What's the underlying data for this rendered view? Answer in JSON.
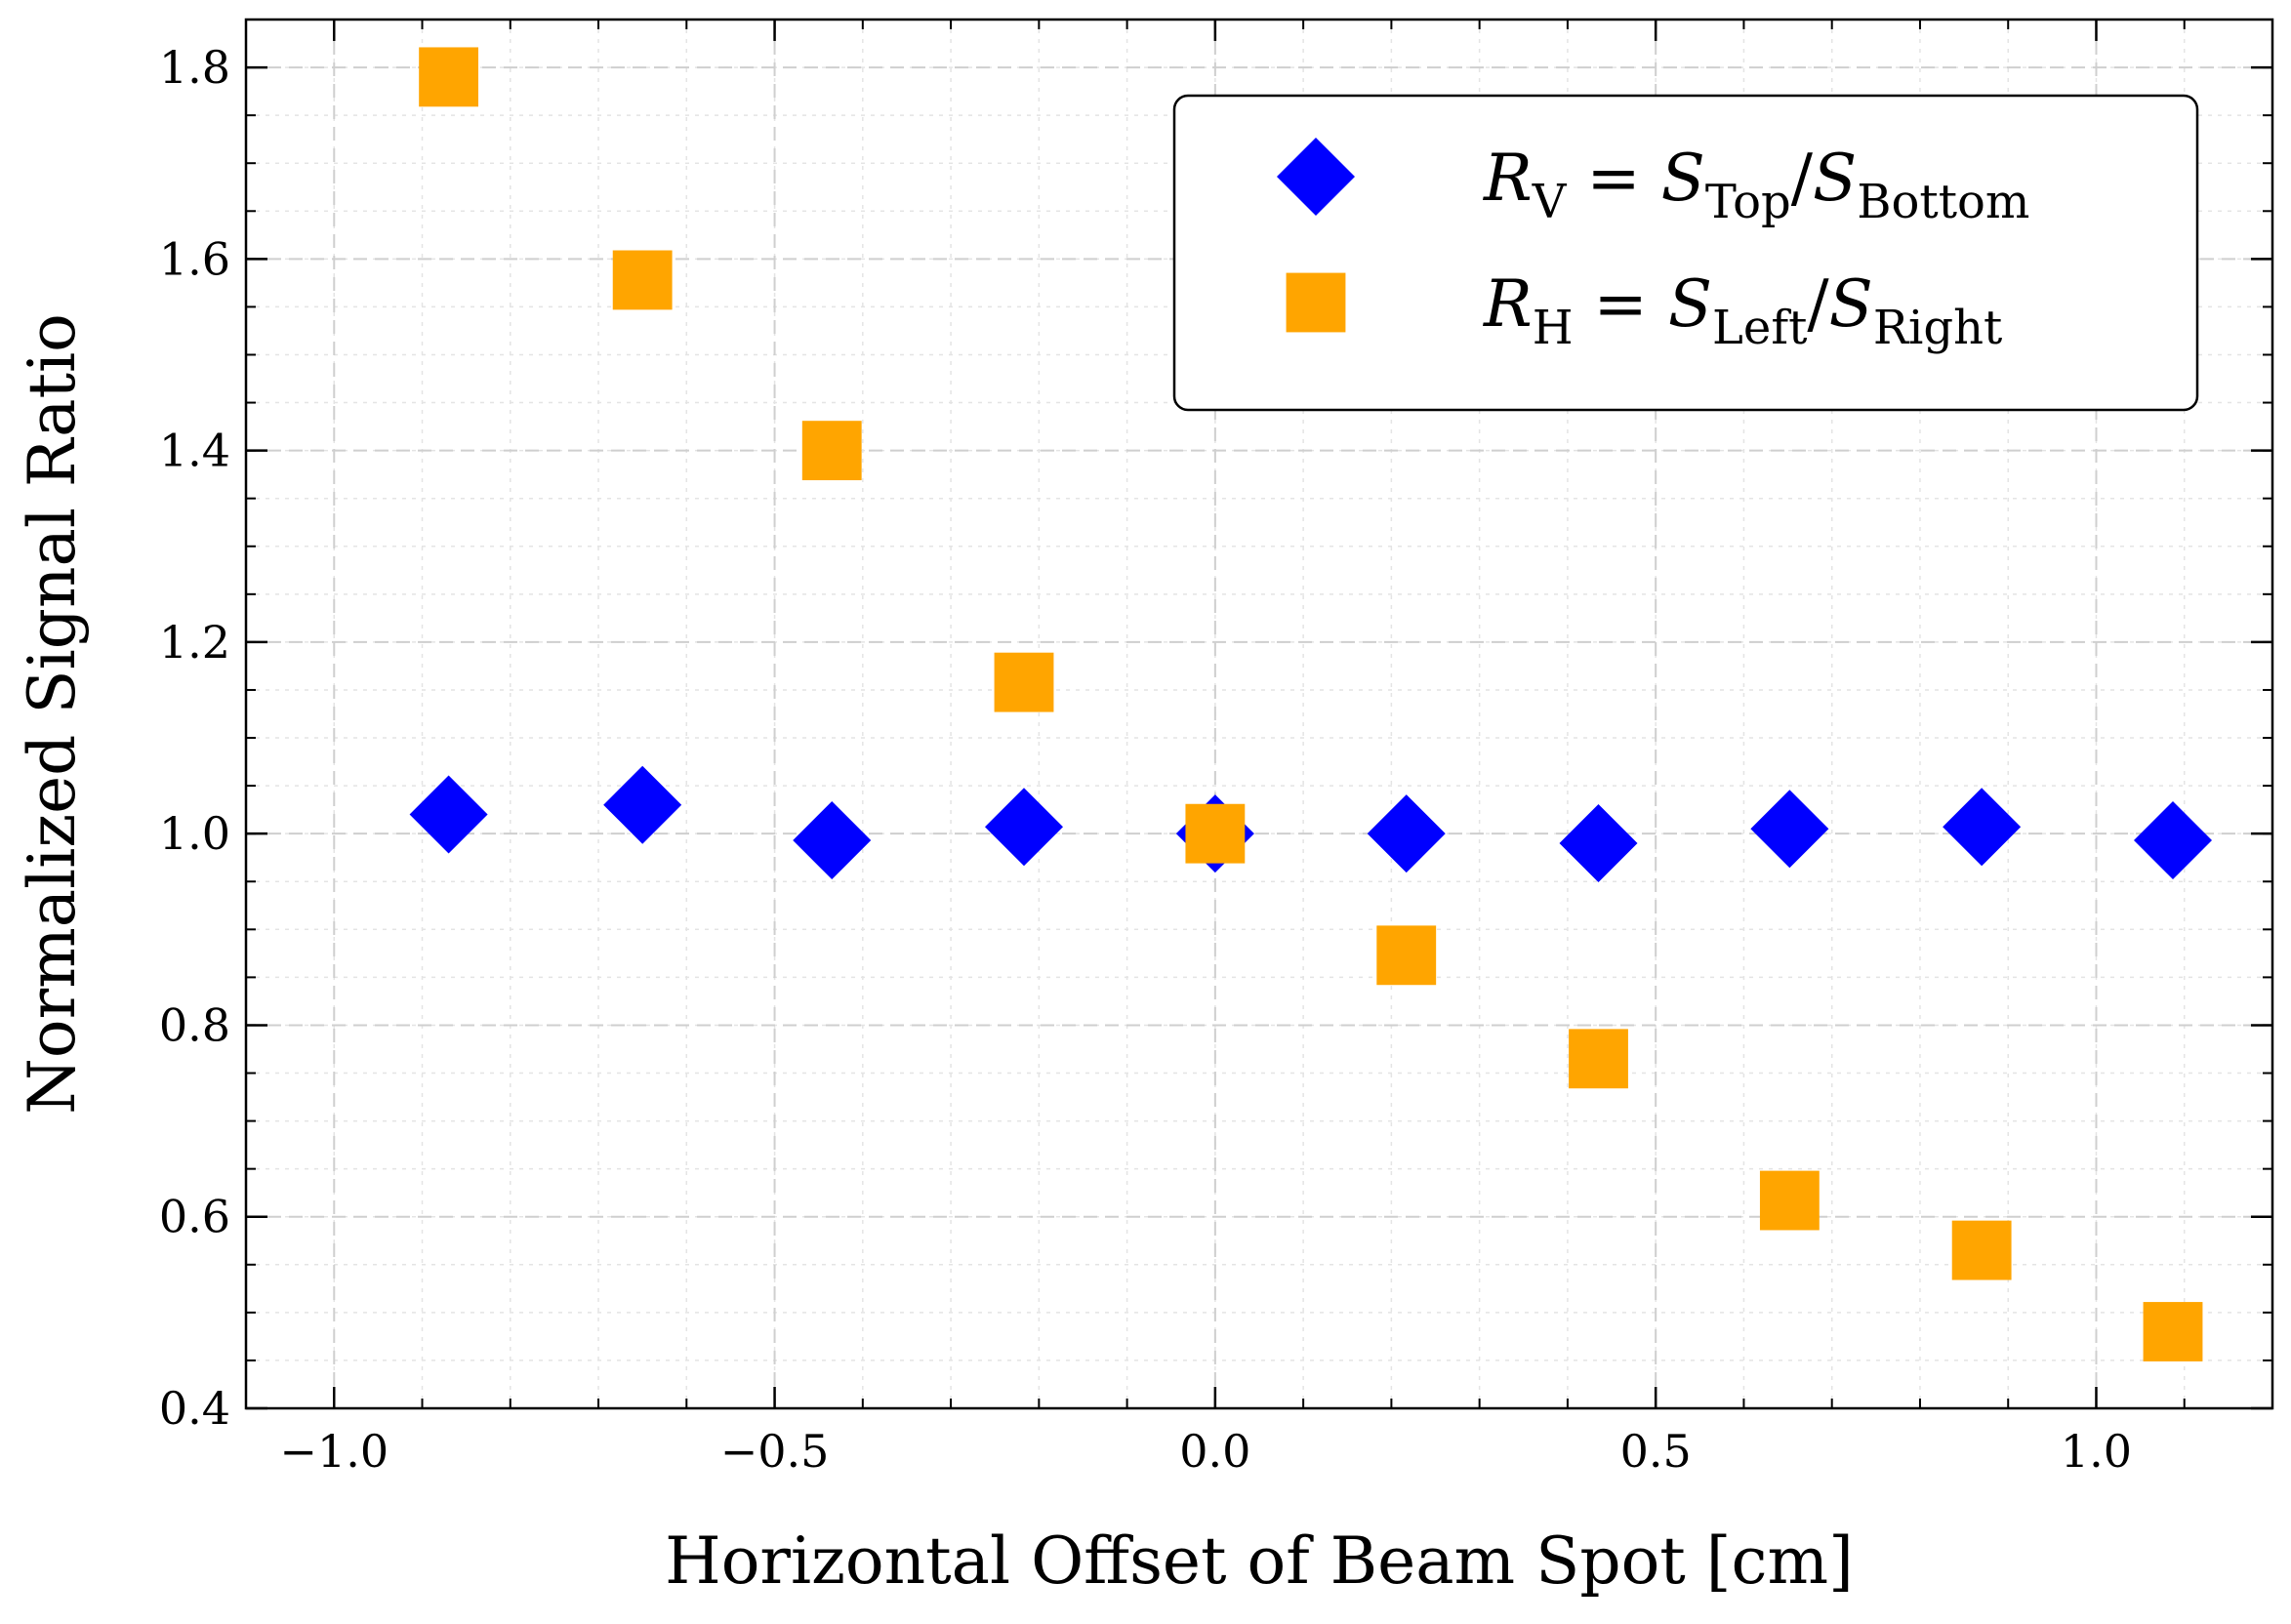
{
  "chart_data": {
    "type": "scatter",
    "xlabel": "Horizontal Offset of Beam Spot [cm]",
    "ylabel": "Normalized Signal Ratio",
    "xlim": [
      -1.1,
      1.2
    ],
    "ylim": [
      0.4,
      1.85
    ],
    "xticks": [
      -1.0,
      -0.5,
      0.0,
      0.5,
      1.0
    ],
    "xtick_labels": [
      "−1.0",
      "−0.5",
      "0.0",
      "0.5",
      "1.0"
    ],
    "yticks": [
      0.4,
      0.6,
      0.8,
      1.0,
      1.2,
      1.4,
      1.6,
      1.8
    ],
    "ytick_labels": [
      "0.4",
      "0.6",
      "0.8",
      "1.0",
      "1.2",
      "1.4",
      "1.6",
      "1.8"
    ],
    "x_minor_step": 0.1,
    "y_minor_step": 0.05,
    "grid": true,
    "legend_position": "top-right",
    "series": [
      {
        "marker": "diamond",
        "color": "#0000ff",
        "legend": {
          "main": "R",
          "main_sub": "V",
          "rel": " = ",
          "num": "S",
          "num_sub": "Top",
          "slash": "/",
          "den": "S",
          "den_sub": "Bottom"
        },
        "x": [
          -0.87,
          -0.65,
          -0.435,
          -0.217,
          0.0,
          0.217,
          0.435,
          0.652,
          0.87,
          1.087
        ],
        "y": [
          1.02,
          1.03,
          0.993,
          1.007,
          1.0,
          1.0,
          0.99,
          1.005,
          1.007,
          0.993
        ]
      },
      {
        "marker": "square",
        "color": "#ffa500",
        "legend": {
          "main": "R",
          "main_sub": "H",
          "rel": " = ",
          "num": "S",
          "num_sub": "Left",
          "slash": "/",
          "den": "S",
          "den_sub": "Right"
        },
        "x": [
          -0.87,
          -0.65,
          -0.435,
          -0.217,
          0.0,
          0.217,
          0.435,
          0.652,
          0.87,
          1.087
        ],
        "y": [
          1.79,
          1.578,
          1.4,
          1.158,
          1.0,
          0.873,
          0.765,
          0.617,
          0.565,
          0.48
        ]
      }
    ]
  }
}
